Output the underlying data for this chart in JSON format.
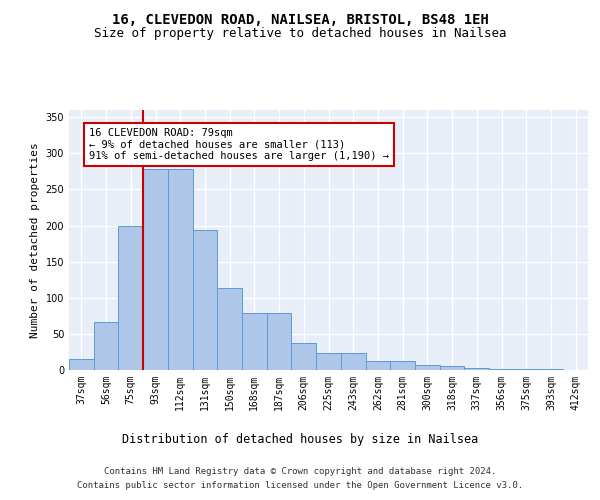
{
  "title": "16, CLEVEDON ROAD, NAILSEA, BRISTOL, BS48 1EH",
  "subtitle": "Size of property relative to detached houses in Nailsea",
  "xlabel": "Distribution of detached houses by size in Nailsea",
  "ylabel": "Number of detached properties",
  "categories": [
    "37sqm",
    "56sqm",
    "75sqm",
    "93sqm",
    "112sqm",
    "131sqm",
    "150sqm",
    "168sqm",
    "187sqm",
    "206sqm",
    "225sqm",
    "243sqm",
    "262sqm",
    "281sqm",
    "300sqm",
    "318sqm",
    "337sqm",
    "356sqm",
    "375sqm",
    "393sqm",
    "412sqm"
  ],
  "values": [
    15,
    67,
    200,
    278,
    278,
    194,
    113,
    79,
    79,
    38,
    24,
    24,
    12,
    12,
    7,
    6,
    3,
    1,
    1,
    2,
    0
  ],
  "bar_color": "#aec6e8",
  "bar_edgecolor": "#5b9bd5",
  "red_line_x": 2,
  "annotation_text": "16 CLEVEDON ROAD: 79sqm\n← 9% of detached houses are smaller (113)\n91% of semi-detached houses are larger (1,190) →",
  "annotation_box_color": "#ffffff",
  "annotation_box_edgecolor": "#cc0000",
  "ylim": [
    0,
    360
  ],
  "yticks": [
    0,
    50,
    100,
    150,
    200,
    250,
    300,
    350
  ],
  "footer_line1": "Contains HM Land Registry data © Crown copyright and database right 2024.",
  "footer_line2": "Contains public sector information licensed under the Open Government Licence v3.0.",
  "background_color": "#e8eef8",
  "grid_color": "#ffffff",
  "title_fontsize": 10,
  "subtitle_fontsize": 9,
  "axis_label_fontsize": 8.5,
  "tick_fontsize": 7,
  "footer_fontsize": 6.5,
  "ylabel_fontsize": 8
}
